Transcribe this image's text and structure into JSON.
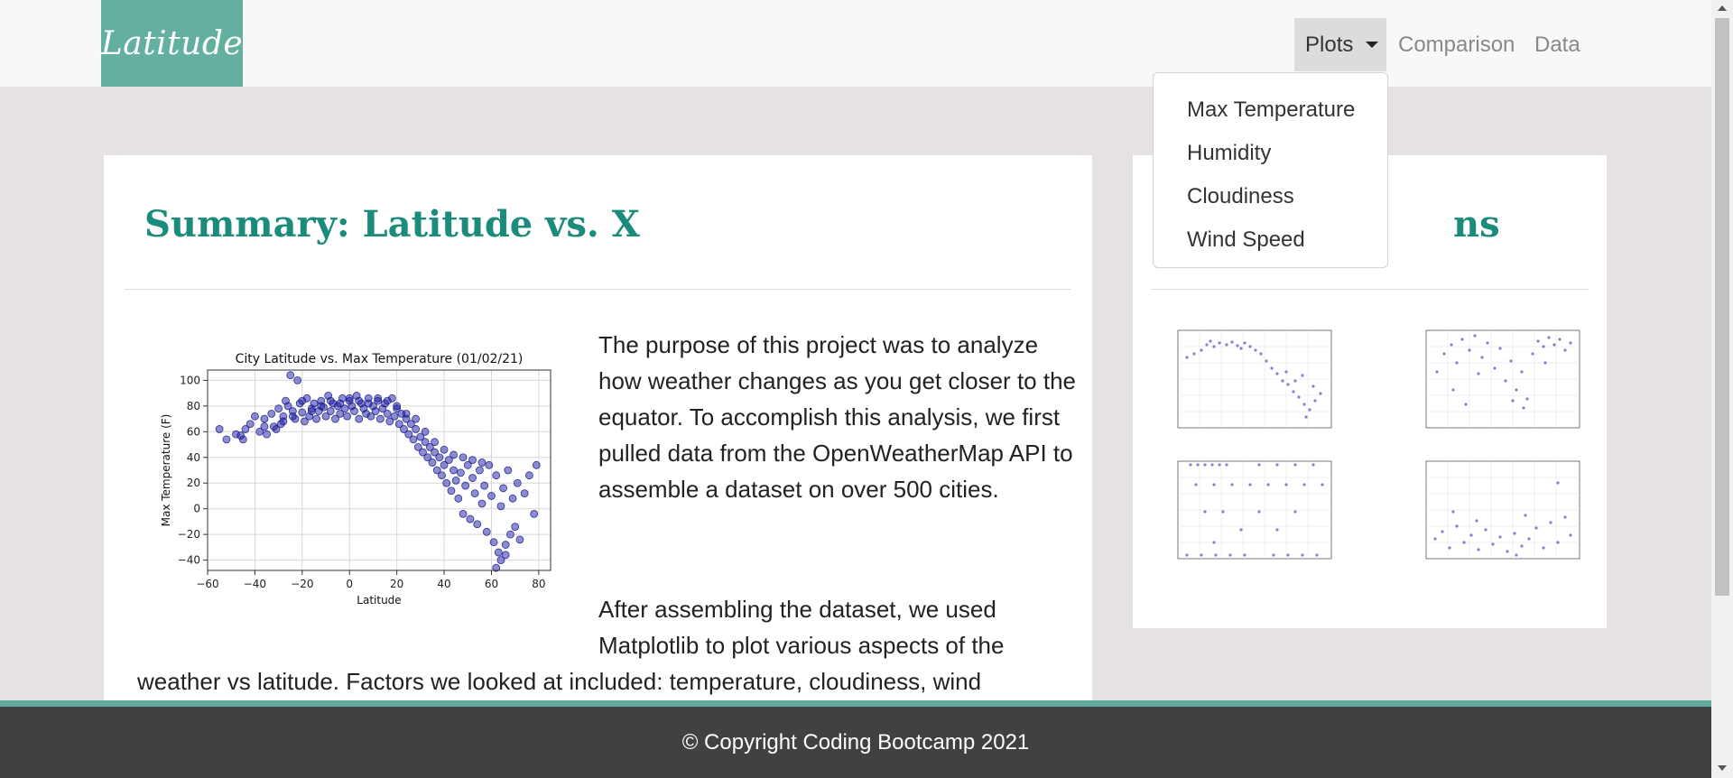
{
  "navbar": {
    "brand": "Latitude",
    "plots_label": "Plots",
    "comparison_label": "Comparison",
    "data_label": "Data",
    "dropdown_items": [
      "Max Temperature",
      "Humidity",
      "Cloudiness",
      "Wind Speed"
    ]
  },
  "main": {
    "title": "Summary: Latitude vs. X",
    "paragraph1": "The purpose of this project was to analyze how weather changes as you get closer to the equator. To accomplish this analysis, we first pulled data from the OpenWeatherMap API to assemble a dataset on over 500 cities.",
    "paragraph2a": "After assembling the dataset, we used Matplotlib to plot various aspects of the",
    "paragraph2b": "weather vs latitude. Factors we looked at included: temperature, cloudiness, wind"
  },
  "side": {
    "title_visible": "ns"
  },
  "footer": {
    "copyright": "© Copyright Coding Bootcamp 2021"
  },
  "colors": {
    "accent": "#63b0a0",
    "title": "#1b8c7c",
    "footer": "#414141",
    "point": "#1a1aa6"
  },
  "chart_data": [
    {
      "type": "scatter",
      "title": "City Latitude vs. Max Temperature (01/02/21)",
      "xlabel": "Latitude",
      "ylabel": "Max Temperature (F)",
      "xlim": [
        -60,
        85
      ],
      "ylim": [
        -48,
        108
      ],
      "xticks": [
        -60,
        -40,
        -20,
        0,
        20,
        40,
        60,
        80
      ],
      "yticks": [
        -40,
        -20,
        0,
        20,
        40,
        60,
        80,
        100
      ],
      "grid": true,
      "points": [
        [
          -55,
          62
        ],
        [
          -52,
          54
        ],
        [
          -46,
          57
        ],
        [
          -45,
          54
        ],
        [
          -42,
          66
        ],
        [
          -40,
          72
        ],
        [
          -38,
          60
        ],
        [
          -36,
          70
        ],
        [
          -35,
          58
        ],
        [
          -33,
          74
        ],
        [
          -31,
          62
        ],
        [
          -30,
          78
        ],
        [
          -29,
          66
        ],
        [
          -28,
          72
        ],
        [
          -27,
          84
        ],
        [
          -26,
          80
        ],
        [
          -25,
          104
        ],
        [
          -24,
          76
        ],
        [
          -23,
          70
        ],
        [
          -22,
          100
        ],
        [
          -21,
          82
        ],
        [
          -20,
          75
        ],
        [
          -19,
          68
        ],
        [
          -18,
          86
        ],
        [
          -17,
          72
        ],
        [
          -16,
          78
        ],
        [
          -15,
          82
        ],
        [
          -14,
          70
        ],
        [
          -13,
          76
        ],
        [
          -12,
          84
        ],
        [
          -11,
          79
        ],
        [
          -10,
          72
        ],
        [
          -9,
          88
        ],
        [
          -8,
          76
        ],
        [
          -7,
          82
        ],
        [
          -6,
          70
        ],
        [
          -5,
          80
        ],
        [
          -4,
          74
        ],
        [
          -3,
          86
        ],
        [
          -2,
          78
        ],
        [
          -1,
          72
        ],
        [
          0,
          84
        ],
        [
          1,
          80
        ],
        [
          2,
          76
        ],
        [
          3,
          88
        ],
        [
          4,
          70
        ],
        [
          5,
          82
        ],
        [
          6,
          78
        ],
        [
          7,
          74
        ],
        [
          8,
          86
        ],
        [
          9,
          72
        ],
        [
          10,
          80
        ],
        [
          11,
          76
        ],
        [
          12,
          84
        ],
        [
          13,
          70
        ],
        [
          14,
          78
        ],
        [
          15,
          82
        ],
        [
          16,
          74
        ],
        [
          17,
          68
        ],
        [
          18,
          86
        ],
        [
          19,
          72
        ],
        [
          20,
          78
        ],
        [
          21,
          66
        ],
        [
          22,
          74
        ],
        [
          23,
          62
        ],
        [
          24,
          70
        ],
        [
          25,
          58
        ],
        [
          26,
          66
        ],
        [
          27,
          54
        ],
        [
          28,
          62
        ],
        [
          29,
          48
        ],
        [
          30,
          56
        ],
        [
          31,
          44
        ],
        [
          32,
          52
        ],
        [
          33,
          40
        ],
        [
          34,
          48
        ],
        [
          35,
          36
        ],
        [
          36,
          44
        ],
        [
          37,
          30
        ],
        [
          38,
          40
        ],
        [
          39,
          26
        ],
        [
          40,
          34
        ],
        [
          41,
          20
        ],
        [
          42,
          38
        ],
        [
          43,
          14
        ],
        [
          44,
          30
        ],
        [
          45,
          22
        ],
        [
          46,
          8
        ],
        [
          47,
          28
        ],
        [
          48,
          -4
        ],
        [
          49,
          18
        ],
        [
          50,
          34
        ],
        [
          51,
          -8
        ],
        [
          52,
          24
        ],
        [
          53,
          12
        ],
        [
          54,
          -12
        ],
        [
          55,
          30
        ],
        [
          56,
          4
        ],
        [
          57,
          18
        ],
        [
          58,
          -18
        ],
        [
          59,
          34
        ],
        [
          60,
          10
        ],
        [
          61,
          -26
        ],
        [
          62,
          26
        ],
        [
          63,
          -34
        ],
        [
          64,
          2
        ],
        [
          65,
          16
        ],
        [
          66,
          -28
        ],
        [
          67,
          30
        ],
        [
          68,
          -20
        ],
        [
          69,
          8
        ],
        [
          70,
          -14
        ],
        [
          71,
          20
        ],
        [
          72,
          -24
        ],
        [
          74,
          12
        ],
        [
          76,
          26
        ],
        [
          79,
          34
        ],
        [
          78,
          -4
        ],
        [
          62,
          -46
        ],
        [
          64,
          -40
        ],
        [
          66,
          -36
        ],
        [
          44,
          42
        ],
        [
          48,
          40
        ],
        [
          52,
          38
        ],
        [
          56,
          36
        ],
        [
          40,
          46
        ],
        [
          36,
          52
        ],
        [
          32,
          60
        ],
        [
          28,
          70
        ],
        [
          24,
          74
        ],
        [
          20,
          80
        ],
        [
          16,
          84
        ],
        [
          12,
          86
        ],
        [
          8,
          82
        ],
        [
          4,
          84
        ],
        [
          0,
          86
        ],
        [
          -4,
          82
        ],
        [
          -8,
          84
        ],
        [
          -12,
          80
        ],
        [
          -16,
          76
        ],
        [
          -20,
          84
        ],
        [
          -24,
          72
        ],
        [
          -28,
          68
        ],
        [
          -32,
          64
        ],
        [
          -36,
          64
        ],
        [
          -44,
          62
        ],
        [
          -48,
          58
        ]
      ]
    }
  ]
}
